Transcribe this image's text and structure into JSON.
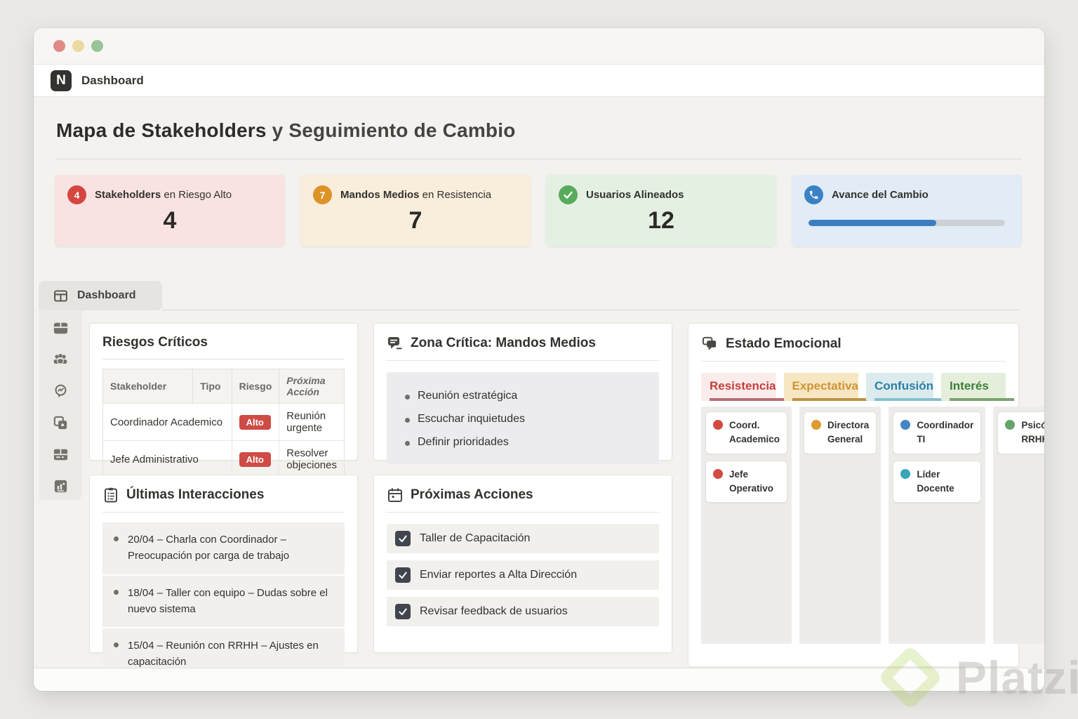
{
  "window": {
    "traffic_lights": [
      {
        "name": "close",
        "color": "#e18b86"
      },
      {
        "name": "minimize",
        "color": "#ecd9a0"
      },
      {
        "name": "zoom",
        "color": "#98c498"
      }
    ]
  },
  "appbar": {
    "logo": "N",
    "title": "Dashboard"
  },
  "page": {
    "title_strong": "Mapa de Stakeholders",
    "title_rest": " y Seguimiento de Cambio"
  },
  "kpis": [
    {
      "badge": "4",
      "label_strong": "Stakeholders",
      "label_rest": " en Riesgo Alto",
      "value": "4",
      "accent": "#d6453f",
      "bg": "#f8e3e2"
    },
    {
      "badge": "7",
      "label_strong": "Mandos Medios",
      "label_rest": " en Resistencia",
      "value": "7",
      "accent": "#dd9327",
      "bg": "#f9eddb"
    },
    {
      "badge_icon": "check-icon",
      "label_strong": "Usuarios Alineados",
      "label_rest": "",
      "value": "12",
      "accent": "#57ab5c",
      "bg": "#e3f0e2"
    },
    {
      "badge_icon": "phone-icon",
      "label_strong": "Avance del Cambio",
      "label_rest": "",
      "progress_pct": 65,
      "accent": "#3b82c4",
      "bg": "#e1ecf6",
      "bar_color": "#3c7dc1"
    }
  ],
  "tab": {
    "label": "Dashboard"
  },
  "sidebar": {
    "icons": [
      "panels-icon",
      "team-icon",
      "chat-insights-icon",
      "boards-icon",
      "table-icon",
      "card-chart-icon"
    ]
  },
  "riesgos": {
    "title": "Riesgos Críticos",
    "headers": [
      "Stakeholder",
      "Tipo",
      "Riesgo",
      "Próxima Acción"
    ],
    "badge_color": "#cf4b45",
    "rows": [
      {
        "stakeholder": "Coordinador Academico",
        "tipo": "",
        "riesgo": "Alto",
        "accion": "Reunión urgente"
      },
      {
        "stakeholder": "Jefe Administrativo",
        "tipo": "",
        "riesgo": "Alto",
        "accion": "Resolver objeciones"
      }
    ]
  },
  "zona": {
    "title": "Zona Crítica: Mandos Medios",
    "bullets": [
      "Reunión estratégica",
      "Escuchar inquietudes",
      "Definir prioridades"
    ]
  },
  "estado": {
    "title": "Estado Emocional",
    "columns": [
      {
        "label": "Resistencia",
        "text_color": "#c4403c",
        "bg": "#fbecec",
        "bar": "#b96e75",
        "cards": [
          {
            "name": "Coord. Academico",
            "dot": "#d24b42"
          },
          {
            "name": "Jefe Operativo",
            "dot": "#d24b42"
          }
        ]
      },
      {
        "label": "Expectativa",
        "text_color": "#cf9434",
        "bg": "#f7e6c2",
        "bar": "#bb9348",
        "cards": [
          {
            "name": "Directora General",
            "dot": "#dc9b2d"
          }
        ]
      },
      {
        "label": "Confusión",
        "text_color": "#2d7fa3",
        "bg": "#dcebee",
        "bar": "#85bfd1",
        "cards": [
          {
            "name": "Coordinador TI",
            "dot": "#4585c2"
          },
          {
            "name": "Líder Docente",
            "dot": "#3aa4b8"
          }
        ]
      },
      {
        "label": "Interés",
        "text_color": "#3c7d3c",
        "bg": "#e4eeda",
        "bar": "#7ba371",
        "cards": [
          {
            "name": "Psicóloga RRHH",
            "dot": "#67a46b"
          }
        ]
      }
    ]
  },
  "interacciones": {
    "title": "Últimas Interacciones",
    "items": [
      "20/04 – Charla con Coordinador – Preocupación por carga de trabajo",
      "18/04 – Taller con equipo – Dudas sobre el nuevo sistema",
      "15/04 – Reunión con RRHH – Ajustes en capacitación"
    ]
  },
  "acciones": {
    "title": "Próximas Acciones",
    "items": [
      {
        "label": "Taller de Capacitación",
        "checked": true
      },
      {
        "label": "Enviar reportes a Alta Dirección",
        "checked": true
      },
      {
        "label": "Revisar feedback de usuarios",
        "checked": true
      }
    ]
  },
  "watermark": {
    "text": "Platzi",
    "logo_color": "#a8cf4e"
  }
}
